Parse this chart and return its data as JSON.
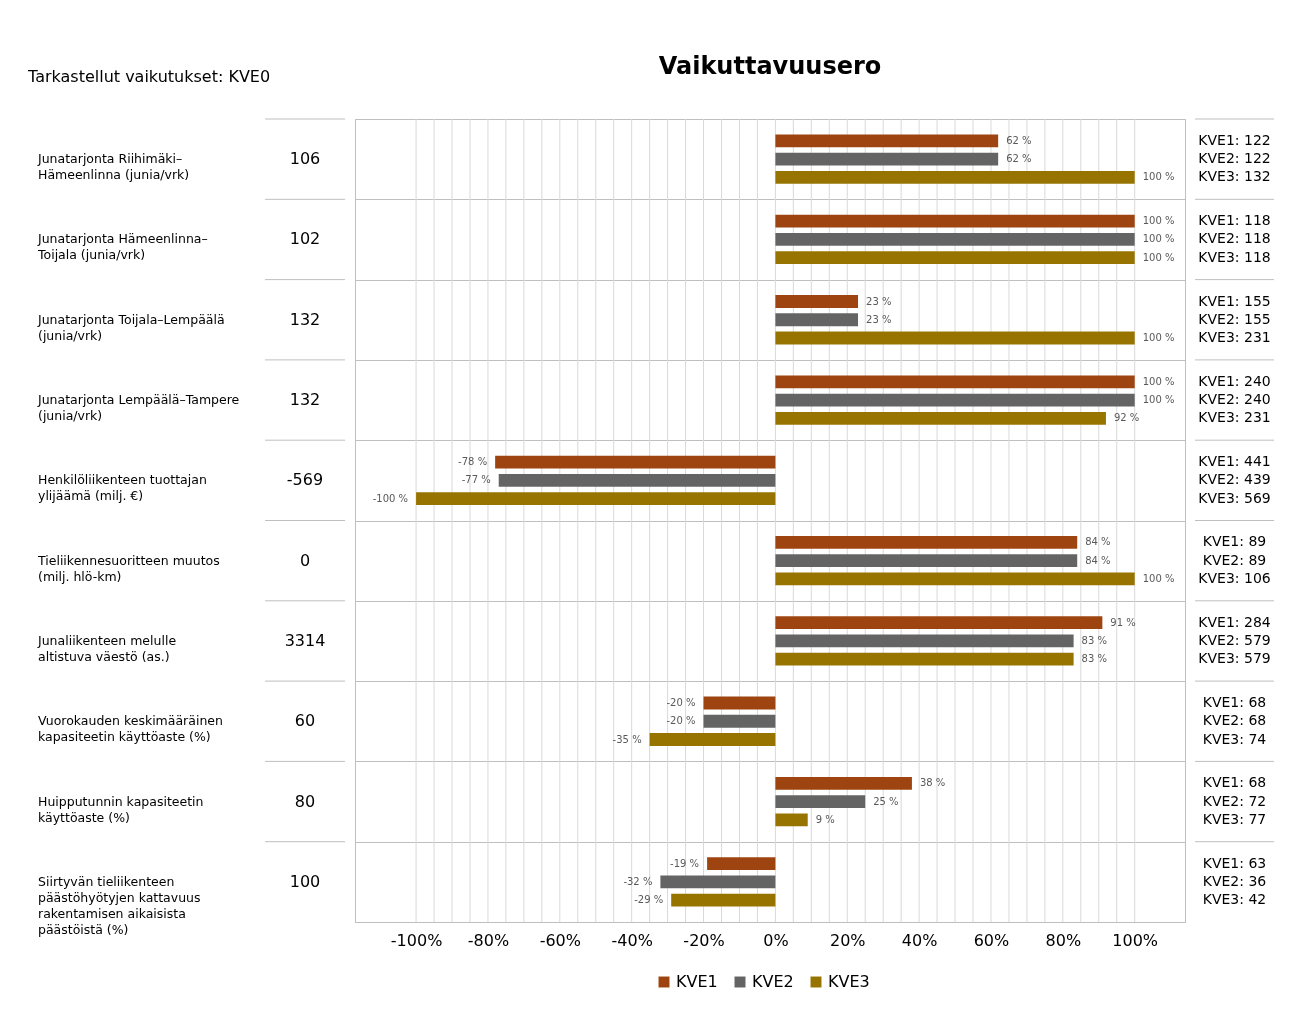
{
  "chart_data": {
    "type": "bar",
    "orientation": "horizontal",
    "title": "Vaikuttavuusero",
    "categories": [
      "Junatarjonta Riihimäki–Hämeenlinna (junia/vrk)",
      "Junatarjonta Hämeenlinna–Toijala (junia/vrk)",
      "Junatarjonta Toijala–Lempäälä (junia/vrk)",
      "Junatarjonta Lempäälä–Tampere (junia/vrk)",
      "Henkilöliikenteen tuottajan ylijäämä (milj. €)",
      "Tieliikennesuoritteen muutos (milj. hlö-km)",
      "Junaliikenteen melulle altistuva väestö (as.)",
      "Vuorokauden keskimääräinen kapasiteetin käyttöaste (%)",
      "Huipputunnin kapasiteetin käyttöaste (%)",
      "Siirtyvän tieliikenteen päästöhyötyjen kattavuus rakentamisen aikaisista päästöistä (%)"
    ],
    "series": [
      {
        "name": "KVE1",
        "color": "#9e4410",
        "values": [
          62,
          100,
          23,
          100,
          -78,
          84,
          91,
          -20,
          38,
          -19
        ],
        "value_labels": [
          "62 %",
          "100 %",
          "23 %",
          "100 %",
          "-78 %",
          "84 %",
          "91 %",
          "-20 %",
          "38 %",
          "-19 %"
        ]
      },
      {
        "name": "KVE2",
        "color": "#646464",
        "values": [
          62,
          100,
          23,
          100,
          -77,
          84,
          83,
          -20,
          25,
          -32
        ],
        "value_labels": [
          "62 %",
          "100 %",
          "23 %",
          "100 %",
          "-77 %",
          "84 %",
          "83 %",
          "-20 %",
          "25 %",
          "-32 %"
        ]
      },
      {
        "name": "KVE3",
        "color": "#977400",
        "values": [
          100,
          100,
          100,
          92,
          -100,
          100,
          83,
          -35,
          9,
          -29
        ],
        "value_labels": [
          "100 %",
          "100 %",
          "100 %",
          "92 %",
          "-100 %",
          "100 %",
          "83 %",
          "-35 %",
          "9 %",
          "-29 %"
        ]
      }
    ],
    "xlim": [
      -117,
      114
    ],
    "xticks": [
      {
        "value": -100,
        "label": "-100%"
      },
      {
        "value": -95,
        "label": null
      },
      {
        "value": -90,
        "label": null
      },
      {
        "value": -85,
        "label": null
      },
      {
        "value": -80,
        "label": "-80%"
      },
      {
        "value": -75,
        "label": null
      },
      {
        "value": -70,
        "label": null
      },
      {
        "value": -65,
        "label": null
      },
      {
        "value": -60,
        "label": "-60%"
      },
      {
        "value": -55,
        "label": null
      },
      {
        "value": -50,
        "label": null
      },
      {
        "value": -45,
        "label": null
      },
      {
        "value": -40,
        "label": "-40%"
      },
      {
        "value": -35,
        "label": null
      },
      {
        "value": -30,
        "label": null
      },
      {
        "value": -25,
        "label": null
      },
      {
        "value": -20,
        "label": "-20%"
      },
      {
        "value": -15,
        "label": null
      },
      {
        "value": -10,
        "label": null
      },
      {
        "value": -5,
        "label": null
      },
      {
        "value": 0,
        "label": "0%"
      },
      {
        "value": 5,
        "label": null
      },
      {
        "value": 10,
        "label": null
      },
      {
        "value": 15,
        "label": null
      },
      {
        "value": 20,
        "label": "20%"
      },
      {
        "value": 25,
        "label": null
      },
      {
        "value": 30,
        "label": null
      },
      {
        "value": 35,
        "label": null
      },
      {
        "value": 40,
        "label": "40%"
      },
      {
        "value": 45,
        "label": null
      },
      {
        "value": 50,
        "label": null
      },
      {
        "value": 55,
        "label": null
      },
      {
        "value": 60,
        "label": "60%"
      },
      {
        "value": 65,
        "label": null
      },
      {
        "value": 70,
        "label": null
      },
      {
        "value": 75,
        "label": null
      },
      {
        "value": 80,
        "label": "80%"
      },
      {
        "value": 85,
        "label": null
      },
      {
        "value": 90,
        "label": null
      },
      {
        "value": 95,
        "label": null
      },
      {
        "value": 100,
        "label": "100%"
      }
    ],
    "grid": "x",
    "legend": "bottom",
    "annotations": [
      "Tarkastellut vaikutukset:  KVE0",
      "106",
      "KVE1: 122",
      "KVE2: 122",
      "KVE3: 132",
      "102",
      "KVE1: 118",
      "KVE2: 118",
      "KVE3: 118",
      "132",
      "KVE1: 155",
      "KVE2: 155",
      "KVE3: 231",
      "132",
      "KVE1: 240",
      "KVE2: 240",
      "KVE3: 231",
      "-569",
      "KVE1: 441",
      "KVE2: 439",
      "KVE3: 569",
      "0",
      "KVE1: 89",
      "KVE2: 89",
      "KVE3: 106",
      "3314",
      "KVE1: 284",
      "KVE2: 579",
      "KVE3: 579",
      "60",
      "KVE1: 68",
      "KVE2: 68",
      "KVE3: 74",
      "80",
      "KVE1: 68",
      "KVE2: 72",
      "KVE3: 77",
      "100",
      "KVE1: 63",
      "KVE2: 36",
      "KVE3: 42"
    ]
  }
}
